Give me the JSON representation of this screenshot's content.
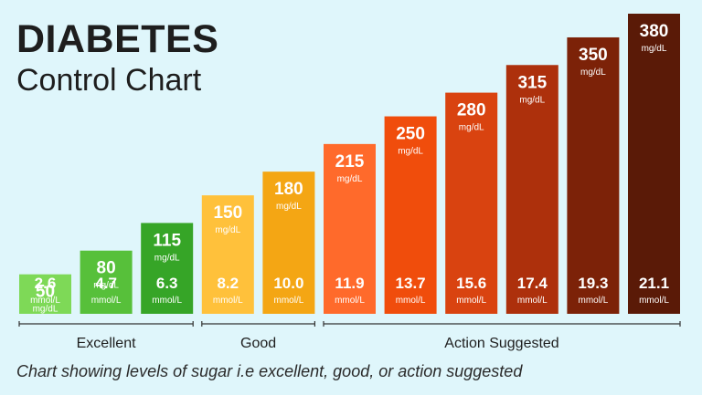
{
  "title": "DIABETES",
  "subtitle": "Control Chart",
  "caption": "Chart showing levels of sugar i.e excellent, good, or action suggested",
  "chart_data": {
    "type": "bar",
    "title": "DIABETES Control Chart",
    "categories": [
      "50",
      "80",
      "115",
      "150",
      "180",
      "215",
      "250",
      "280",
      "315",
      "350",
      "380"
    ],
    "series": [
      {
        "name": "mg/dL",
        "values": [
          50,
          80,
          115,
          150,
          180,
          215,
          250,
          280,
          315,
          350,
          380
        ]
      },
      {
        "name": "mmol/L",
        "values": [
          2.6,
          4.7,
          6.3,
          8.2,
          10.0,
          11.9,
          13.7,
          15.6,
          17.4,
          19.3,
          21.1
        ]
      }
    ],
    "bars": [
      {
        "mg": "50",
        "mgUnit": "mg/dL",
        "mmol": "2.6",
        "mmolUnit": "mmol/L",
        "color": "#7ed957"
      },
      {
        "mg": "80",
        "mgUnit": "mg/dL",
        "mmol": "4.7",
        "mmolUnit": "mmol/L",
        "color": "#57c03a"
      },
      {
        "mg": "115",
        "mgUnit": "mg/dL",
        "mmol": "6.3",
        "mmolUnit": "mmol/L",
        "color": "#36a527"
      },
      {
        "mg": "150",
        "mgUnit": "mg/dL",
        "mmol": "8.2",
        "mmolUnit": "mmol/L",
        "color": "#ffc13b"
      },
      {
        "mg": "180",
        "mgUnit": "mg/dL",
        "mmol": "10.0",
        "mmolUnit": "mmol/L",
        "color": "#f4a614"
      },
      {
        "mg": "215",
        "mgUnit": "mg/dL",
        "mmol": "11.9",
        "mmolUnit": "mmol/L",
        "color": "#ff6a2b"
      },
      {
        "mg": "250",
        "mgUnit": "mg/dL",
        "mmol": "13.7",
        "mmolUnit": "mmol/L",
        "color": "#f04d0c"
      },
      {
        "mg": "280",
        "mgUnit": "mg/dL",
        "mmol": "15.6",
        "mmolUnit": "mmol/L",
        "color": "#d94310"
      },
      {
        "mg": "315",
        "mgUnit": "mg/dL",
        "mmol": "17.4",
        "mmolUnit": "mmol/L",
        "color": "#ad300c"
      },
      {
        "mg": "350",
        "mgUnit": "mg/dL",
        "mmol": "19.3",
        "mmolUnit": "mmol/L",
        "color": "#7c2208"
      },
      {
        "mg": "380",
        "mgUnit": "mg/dL",
        "mmol": "21.1",
        "mmolUnit": "mmol/L",
        "color": "#5a1a07"
      }
    ],
    "groups": [
      {
        "label": "Excellent",
        "first": 0,
        "last": 2
      },
      {
        "label": "Good",
        "first": 3,
        "last": 4
      },
      {
        "label": "Action Suggested",
        "first": 5,
        "last": 10
      }
    ],
    "ylim": [
      0,
      380
    ],
    "grid": false,
    "legend": "none"
  }
}
